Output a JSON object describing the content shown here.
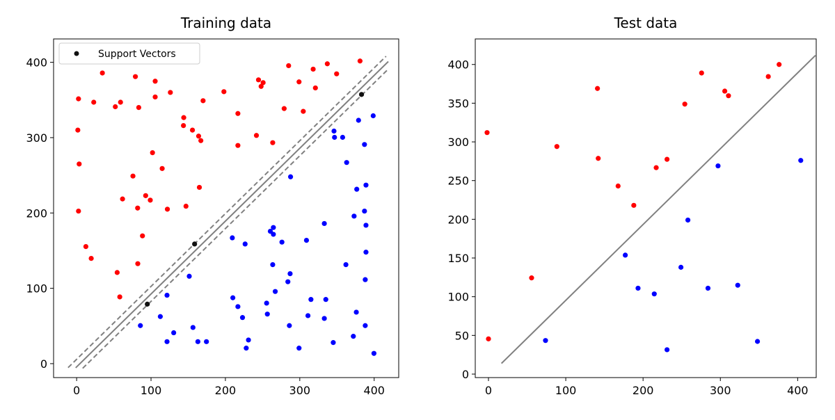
{
  "chart_data": [
    {
      "type": "scatter",
      "title": "Training data",
      "xlabel": "",
      "ylabel": "",
      "xlim": [
        -31,
        433
      ],
      "ylim": [
        -18.5,
        431
      ],
      "xticks": [
        0,
        100,
        200,
        300,
        400
      ],
      "yticks": [
        0,
        100,
        200,
        300,
        400
      ],
      "grid": false,
      "legend": {
        "placement": "upper-left",
        "entries": [
          {
            "label": "Support Vectors",
            "color": "#111111"
          }
        ]
      },
      "colors": {
        "class_a": "#ff0000",
        "class_b": "#0000ff",
        "support": "#111111",
        "boundary": "#808080"
      },
      "red_points": [
        [
          34.6,
          385.8
        ],
        [
          79,
          381
        ],
        [
          105.6,
          374.9
        ],
        [
          198,
          361
        ],
        [
          2.5,
          351.5
        ],
        [
          23,
          347
        ],
        [
          52,
          341
        ],
        [
          59,
          347
        ],
        [
          83.5,
          340
        ],
        [
          105.6,
          354
        ],
        [
          126,
          360
        ],
        [
          170,
          349
        ],
        [
          144,
          326.6
        ],
        [
          143.6,
          316
        ],
        [
          155.7,
          310
        ],
        [
          164,
          302
        ],
        [
          167,
          296
        ],
        [
          1.6,
          310
        ],
        [
          102,
          280
        ],
        [
          3.4,
          265
        ],
        [
          115,
          259
        ],
        [
          75.7,
          249
        ],
        [
          165,
          234
        ],
        [
          61.7,
          218.6
        ],
        [
          92.8,
          223
        ],
        [
          99,
          217
        ],
        [
          82,
          206.5
        ],
        [
          122,
          205
        ],
        [
          147,
          209
        ],
        [
          2.5,
          202.5
        ],
        [
          285,
          395.5
        ],
        [
          318,
          390.9
        ],
        [
          337,
          398
        ],
        [
          381,
          401.7
        ],
        [
          349.5,
          384.7
        ],
        [
          244.5,
          376.7
        ],
        [
          250.7,
          373
        ],
        [
          248,
          368
        ],
        [
          299,
          374
        ],
        [
          321,
          366
        ],
        [
          216.8,
          332
        ],
        [
          279,
          338.6
        ],
        [
          304.7,
          334.9
        ],
        [
          241.7,
          302.9
        ],
        [
          263.6,
          293.3
        ],
        [
          216.8,
          289.6
        ],
        [
          88.5,
          169.6
        ],
        [
          12.4,
          155.4
        ],
        [
          19.6,
          139.7
        ],
        [
          82.2,
          132.7
        ],
        [
          54.5,
          121
        ],
        [
          58,
          88.6
        ]
      ],
      "blue_points": [
        [
          398.7,
          329
        ],
        [
          379,
          323
        ],
        [
          346,
          308.7
        ],
        [
          346.7,
          300.4
        ],
        [
          357.6,
          300.4
        ],
        [
          387,
          290.9
        ],
        [
          363,
          267
        ],
        [
          287.6,
          248
        ],
        [
          389,
          237
        ],
        [
          376.6,
          231.5
        ],
        [
          387,
          202.5
        ],
        [
          151.4,
          116
        ],
        [
          121.5,
          90.8
        ],
        [
          112.5,
          62.5
        ],
        [
          85.7,
          50.5
        ],
        [
          130.5,
          41
        ],
        [
          156.4,
          48
        ],
        [
          121.5,
          29.2
        ],
        [
          163,
          29.2
        ],
        [
          174.5,
          29.2
        ],
        [
          373,
          195.8
        ],
        [
          333,
          186
        ],
        [
          389,
          183.7
        ],
        [
          264.5,
          180.7
        ],
        [
          260.4,
          175.7
        ],
        [
          264.5,
          171.7
        ],
        [
          209.3,
          167
        ],
        [
          226.5,
          158.8
        ],
        [
          276,
          161.3
        ],
        [
          309,
          163.7
        ],
        [
          389,
          148
        ],
        [
          263.6,
          131.4
        ],
        [
          362,
          131.4
        ],
        [
          287,
          119.4
        ],
        [
          284,
          108.7
        ],
        [
          388,
          111.5
        ],
        [
          267,
          95.8
        ],
        [
          210,
          87.4
        ],
        [
          216.8,
          75.7
        ],
        [
          223,
          61.2
        ],
        [
          255.4,
          80.3
        ],
        [
          256.4,
          65.8
        ],
        [
          315,
          85.2
        ],
        [
          335,
          85.2
        ],
        [
          376,
          68.3
        ],
        [
          311,
          63.7
        ],
        [
          333,
          60
        ],
        [
          286,
          50.5
        ],
        [
          388,
          50.5
        ],
        [
          231,
          31.4
        ],
        [
          228,
          20.6
        ],
        [
          299,
          20.6
        ],
        [
          345,
          28
        ],
        [
          372,
          36.3
        ],
        [
          399.7,
          13.6
        ]
      ],
      "support_vectors": [
        [
          383,
          357.3
        ],
        [
          158.6,
          158.8
        ],
        [
          95,
          79
        ]
      ],
      "decision_boundary": [
        [
          -1.3,
          -5.5
        ],
        [
          419,
          401
        ]
      ],
      "margin_upper": [
        [
          -11.5,
          -5.3
        ],
        [
          416,
          408
        ]
      ],
      "margin_lower": [
        [
          8.1,
          -6.2
        ],
        [
          419,
          391
        ]
      ]
    },
    {
      "type": "scatter",
      "title": "Test data",
      "xlabel": "",
      "ylabel": "",
      "xlim": [
        -17.1,
        424
      ],
      "ylim": [
        -4.5,
        433
      ],
      "xticks": [
        0,
        100,
        200,
        300,
        400
      ],
      "yticks": [
        0,
        50,
        100,
        150,
        200,
        250,
        300,
        350,
        400
      ],
      "grid": false,
      "colors": {
        "class_a": "#ff0000",
        "class_b": "#0000ff",
        "boundary": "#808080"
      },
      "red_points": [
        [
          -1.8,
          312
        ],
        [
          0,
          45.5
        ],
        [
          55.8,
          124.3
        ],
        [
          88.5,
          294
        ],
        [
          141,
          369
        ],
        [
          142,
          278.7
        ],
        [
          167.7,
          243
        ],
        [
          188,
          218
        ],
        [
          217,
          266.7
        ],
        [
          231,
          277.5
        ],
        [
          254,
          348.8
        ],
        [
          275.7,
          389
        ],
        [
          305.7,
          365.6
        ],
        [
          310.5,
          359.6
        ],
        [
          362,
          384.4
        ],
        [
          376,
          400
        ]
      ],
      "blue_points": [
        [
          73.8,
          43.4
        ],
        [
          177,
          153.7
        ],
        [
          193.5,
          111
        ],
        [
          214.5,
          103.6
        ],
        [
          231,
          31.5
        ],
        [
          249,
          138
        ],
        [
          258,
          199
        ],
        [
          297,
          269
        ],
        [
          284,
          111
        ],
        [
          322.5,
          114.8
        ],
        [
          348,
          42.2
        ],
        [
          404,
          276
        ]
      ],
      "decision_boundary": [
        [
          16.8,
          13.8
        ],
        [
          423,
          411.7
        ]
      ]
    }
  ]
}
